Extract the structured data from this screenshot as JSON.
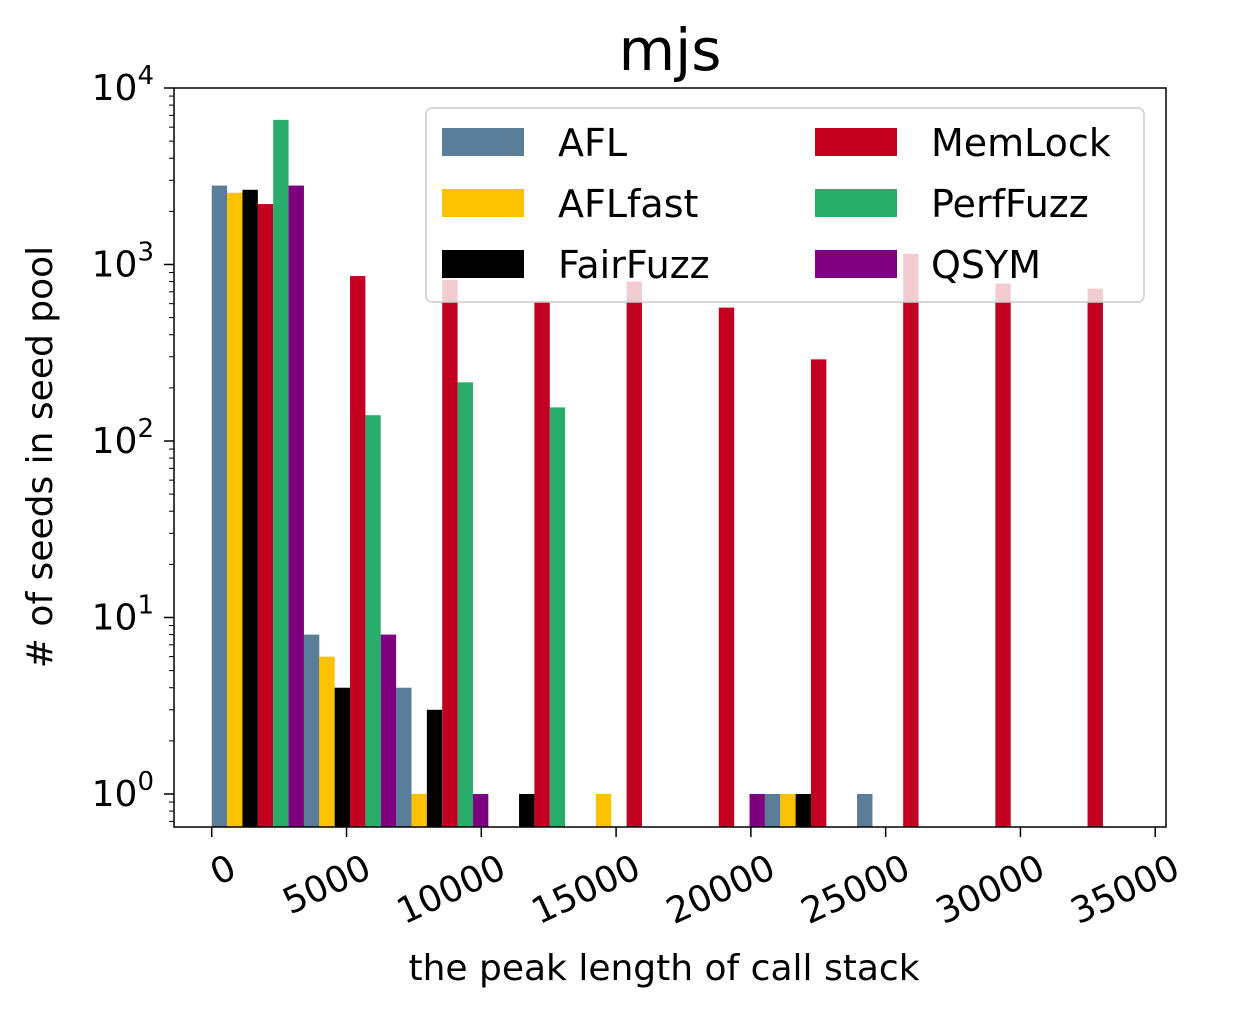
{
  "chart_data": {
    "type": "bar",
    "title": "mjs",
    "xlabel": "the peak length of call stack",
    "ylabel": "# of seeds in seed pool",
    "yscale": "log",
    "ylim": [
      0.65,
      10000
    ],
    "xlim": [
      -1400,
      35400
    ],
    "x_ticks": [
      0,
      5000,
      10000,
      15000,
      20000,
      25000,
      30000,
      35000
    ],
    "x_tick_labels": [
      "0",
      "5000",
      "10000",
      "15000",
      "20000",
      "25000",
      "30000",
      "35000"
    ],
    "y_ticks": [
      1,
      10,
      100,
      1000,
      10000
    ],
    "y_tick_labels": [
      {
        "base": "10",
        "exp": "0"
      },
      {
        "base": "10",
        "exp": "1"
      },
      {
        "base": "10",
        "exp": "2"
      },
      {
        "base": "10",
        "exp": "3"
      },
      {
        "base": "10",
        "exp": "4"
      }
    ],
    "legend_position": "top-right",
    "legend_columns": 2,
    "grid": false,
    "bin_starts": [
      0,
      3420,
      6840,
      10260,
      13680,
      17100,
      20520,
      23940,
      27360,
      30780
    ],
    "bin_width": 3420,
    "series": [
      {
        "name": "AFL",
        "color": "#5a7d9a",
        "values": [
          2800,
          8,
          4,
          null,
          null,
          null,
          1,
          1,
          null,
          null
        ]
      },
      {
        "name": "AFLfast",
        "color": "#fcc200",
        "values": [
          2550,
          6,
          1,
          null,
          1,
          null,
          1,
          null,
          null,
          null
        ]
      },
      {
        "name": "FairFuzz",
        "color": "#000000",
        "values": [
          2650,
          4,
          3,
          1,
          null,
          null,
          1,
          null,
          null,
          null
        ]
      },
      {
        "name": "MemLock",
        "color": "#c20020",
        "values": [
          2200,
          860,
          820,
          620,
          800,
          570,
          290,
          1150,
          780,
          730
        ]
      },
      {
        "name": "PerfFuzz",
        "color": "#28ae6a",
        "values": [
          6600,
          140,
          215,
          155,
          null,
          null,
          null,
          null,
          null,
          null
        ]
      },
      {
        "name": "QSYM",
        "color": "#7e0080",
        "values": [
          2800,
          8,
          1,
          null,
          null,
          1,
          null,
          null,
          null,
          null
        ]
      }
    ]
  }
}
